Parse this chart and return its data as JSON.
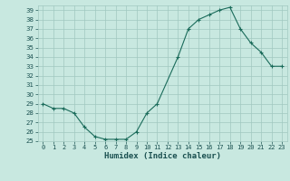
{
  "x": [
    0,
    1,
    2,
    3,
    4,
    5,
    6,
    7,
    8,
    9,
    10,
    11,
    13,
    14,
    15,
    16,
    17,
    18,
    19,
    20,
    21,
    22,
    23
  ],
  "y": [
    29,
    28.5,
    28.5,
    28,
    26.5,
    25.5,
    25.2,
    25.2,
    25.2,
    26,
    28,
    29,
    34,
    37,
    38,
    38.5,
    39,
    39.3,
    37,
    35.5,
    34.5,
    33,
    33
  ],
  "xlabel": "Humidex (Indice chaleur)",
  "xlim": [
    -0.5,
    23.5
  ],
  "ylim": [
    25,
    39.5
  ],
  "yticks": [
    25,
    26,
    27,
    28,
    29,
    30,
    31,
    32,
    33,
    34,
    35,
    36,
    37,
    38,
    39
  ],
  "line_color": "#1a6b5a",
  "marker_color": "#1a6b5a",
  "bg_color": "#c8e8e0",
  "grid_color": "#a0c8c0",
  "label_color": "#1a5050",
  "fig_bg": "#c8e8e0"
}
